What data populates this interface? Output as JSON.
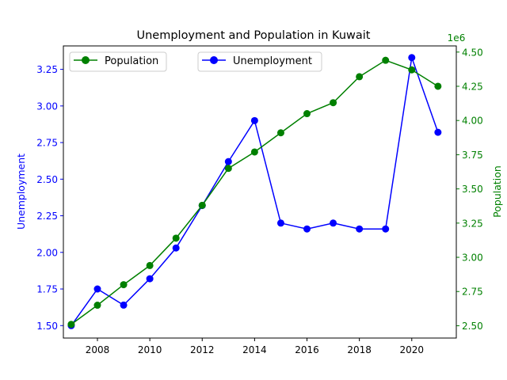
{
  "chart_data": {
    "type": "line",
    "title": "Unemployment and Population in Kuwait",
    "xlabel": "",
    "x": [
      2007,
      2008,
      2009,
      2010,
      2011,
      2012,
      2013,
      2014,
      2015,
      2016,
      2017,
      2018,
      2019,
      2020,
      2021
    ],
    "xlim": [
      2006.7,
      2021.7
    ],
    "xticks": [
      2008,
      2010,
      2012,
      2014,
      2016,
      2018,
      2020
    ],
    "left_axis": {
      "label": "Unemployment",
      "color": "#0000ff",
      "ylim": [
        1.415,
        3.41
      ],
      "ticks": [
        "1.50",
        "1.75",
        "2.00",
        "2.25",
        "2.50",
        "2.75",
        "3.00",
        "3.25"
      ]
    },
    "right_axis": {
      "label": "Population",
      "color": "#008000",
      "offset_text": "1e6",
      "ylim": [
        2.41,
        4.545
      ],
      "ticks": [
        "2.50",
        "2.75",
        "3.00",
        "3.25",
        "3.50",
        "3.75",
        "4.00",
        "4.25",
        "4.50"
      ]
    },
    "series": [
      {
        "name": "Unemployment",
        "axis": "left",
        "color": "#0000ff",
        "values": [
          1.5,
          1.75,
          1.64,
          1.82,
          2.03,
          2.32,
          2.62,
          2.9,
          2.2,
          2.16,
          2.2,
          2.16,
          2.16,
          3.33,
          2.82
        ]
      },
      {
        "name": "Population",
        "axis": "right",
        "color": "#008000",
        "values": [
          2.51,
          2.65,
          2.8,
          2.94,
          3.14,
          3.38,
          3.65,
          3.77,
          3.91,
          4.05,
          4.13,
          4.32,
          4.44,
          4.37,
          4.25
        ]
      }
    ],
    "legend": [
      {
        "label": "Population",
        "color": "#008000",
        "placement": "upper-left"
      },
      {
        "label": "Unemployment",
        "color": "#0000ff",
        "placement": "upper-center"
      }
    ]
  }
}
